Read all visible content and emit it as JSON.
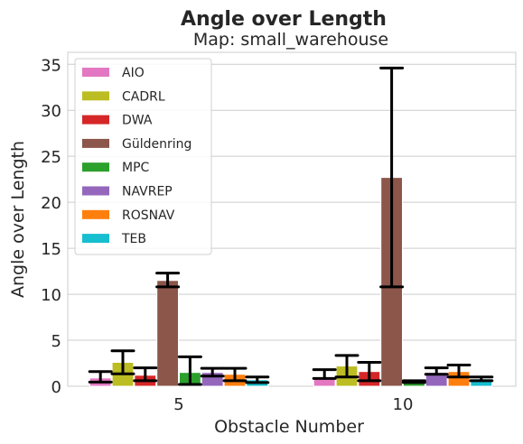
{
  "chart_data": {
    "type": "bar",
    "title": "Angle over Length",
    "subtitle": "Map: small_warehouse",
    "xlabel": "Obstacle Number",
    "ylabel": "Angle over Length",
    "categories": [
      "5",
      "10"
    ],
    "ylim": [
      0,
      36.3
    ],
    "yticks": [
      "0",
      "5",
      "10",
      "15",
      "20",
      "25",
      "30",
      "35"
    ],
    "grid": "horizontal",
    "legend_position": "top-left",
    "series": [
      {
        "name": "AIO",
        "color": "#e377c2",
        "values": [
          0.9,
          1.0
        ],
        "err_low": [
          0.45,
          0.85
        ],
        "err_high": [
          1.6,
          1.8
        ]
      },
      {
        "name": "CADRL",
        "color": "#bcbd22",
        "values": [
          2.6,
          2.2
        ],
        "err_low": [
          1.35,
          1.0
        ],
        "err_high": [
          3.85,
          3.35
        ]
      },
      {
        "name": "DWA",
        "color": "#d62728",
        "values": [
          1.2,
          1.6
        ],
        "err_low": [
          0.6,
          0.6
        ],
        "err_high": [
          2.0,
          2.6
        ]
      },
      {
        "name": "Güldenring",
        "color": "#8c564b",
        "values": [
          11.5,
          22.7
        ],
        "err_low": [
          10.8,
          10.8
        ],
        "err_high": [
          12.3,
          34.6
        ]
      },
      {
        "name": "MPC",
        "color": "#2ca02c",
        "values": [
          1.5,
          0.5
        ],
        "err_low": [
          0.2,
          0.4
        ],
        "err_high": [
          3.2,
          0.6
        ]
      },
      {
        "name": "NAVREP",
        "color": "#9467bd",
        "values": [
          1.5,
          1.5
        ],
        "err_low": [
          1.1,
          1.3
        ],
        "err_high": [
          1.95,
          2.0
        ]
      },
      {
        "name": "ROSNAV",
        "color": "#ff7f0e",
        "values": [
          1.3,
          1.6
        ],
        "err_low": [
          0.6,
          1.0
        ],
        "err_high": [
          1.95,
          2.3
        ]
      },
      {
        "name": "TEB",
        "color": "#17becf",
        "values": [
          0.7,
          0.8
        ],
        "err_low": [
          0.4,
          0.6
        ],
        "err_high": [
          1.0,
          1.0
        ]
      }
    ]
  }
}
